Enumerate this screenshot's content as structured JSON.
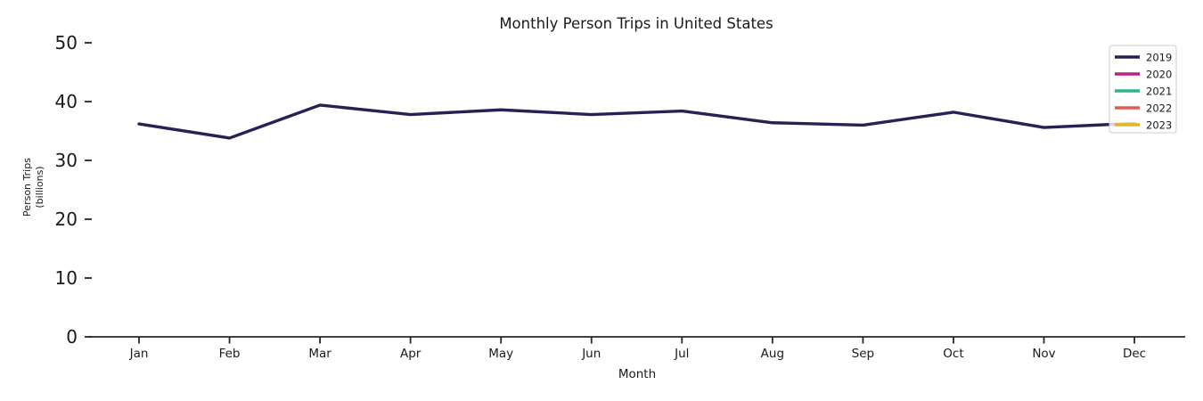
{
  "chart_data": {
    "type": "line",
    "title": "Monthly Person Trips in United States",
    "xlabel": "Month",
    "ylabel_line1": "Person Trips",
    "ylabel_line2": "(billions)",
    "categories": [
      "Jan",
      "Feb",
      "Mar",
      "Apr",
      "May",
      "Jun",
      "Jul",
      "Aug",
      "Sep",
      "Oct",
      "Nov",
      "Dec"
    ],
    "y_ticks": [
      0,
      10,
      20,
      30,
      40,
      50
    ],
    "ylim": [
      0,
      50
    ],
    "grid": false,
    "legend_position": "upper right",
    "series": [
      {
        "name": "2019",
        "color": "#262254",
        "values": [
          36.2,
          33.8,
          39.4,
          37.8,
          38.6,
          37.8,
          38.4,
          36.4,
          36.0,
          38.2,
          35.6,
          36.3
        ]
      },
      {
        "name": "2020",
        "color": "#bc2186",
        "values": []
      },
      {
        "name": "2021",
        "color": "#2bb58f",
        "values": []
      },
      {
        "name": "2022",
        "color": "#e05b52",
        "values": []
      },
      {
        "name": "2023",
        "color": "#e5b41f",
        "values": []
      }
    ],
    "axis_color": "#262626",
    "legend_border_color": "#cccccc",
    "legend_background": "rgba(255,255,255,0.8)"
  }
}
